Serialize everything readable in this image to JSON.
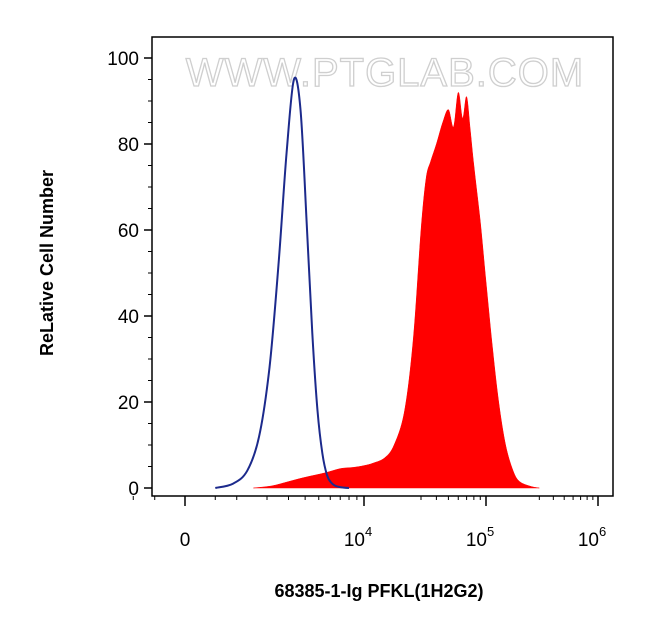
{
  "watermark": "WWW.PTGLAB.COM",
  "chart_data": {
    "type": "area",
    "title": "",
    "xlabel": "68385-1-Ig PFKL(1H2G2)",
    "ylabel": "ReLative Cell Number",
    "x_scale": "biexponential",
    "ylim": [
      0,
      100
    ],
    "y_ticks": [
      0,
      20,
      40,
      60,
      80,
      100
    ],
    "x_ticks": [
      {
        "value": 0,
        "base": "0",
        "exp": ""
      },
      {
        "value": 10000,
        "base": "10",
        "exp": "4"
      },
      {
        "value": 100000,
        "base": "10",
        "exp": "5"
      },
      {
        "value": 1000000,
        "base": "10",
        "exp": "6"
      }
    ],
    "grid": false,
    "legend": "none",
    "series": [
      {
        "kind": "filled",
        "color": "#ff0000",
        "x": [
          1500,
          2200,
          3000,
          4000,
          5500,
          7000,
          8500,
          10000,
          12000,
          15000,
          18000,
          22000,
          26000,
          30000,
          33000,
          36000,
          40000,
          45000,
          50000,
          55000,
          60000,
          65000,
          70000,
          75000,
          80000,
          90000,
          100000,
          115000,
          130000,
          150000,
          175000,
          200000,
          250000,
          300000
        ],
        "y": [
          0,
          0.5,
          1.5,
          2.5,
          3.5,
          4.5,
          4.8,
          5.2,
          5.8,
          7,
          10,
          18,
          35,
          60,
          72,
          76,
          80,
          85,
          88,
          84,
          92,
          86,
          91,
          83,
          75,
          62,
          48,
          32,
          20,
          10,
          4,
          1.5,
          0.4,
          0
        ]
      },
      {
        "kind": "outline",
        "color": "#1c2a8c",
        "x": [
          500,
          900,
          1300,
          1700,
          2100,
          2500,
          2900,
          3300,
          3700,
          4100,
          4500,
          4900,
          5300,
          5700,
          6100,
          6500,
          7000,
          8000
        ],
        "y": [
          0,
          1,
          4,
          12,
          28,
          52,
          78,
          95,
          88,
          62,
          36,
          18,
          8,
          3,
          1.2,
          0.5,
          0.2,
          0
        ]
      }
    ]
  }
}
